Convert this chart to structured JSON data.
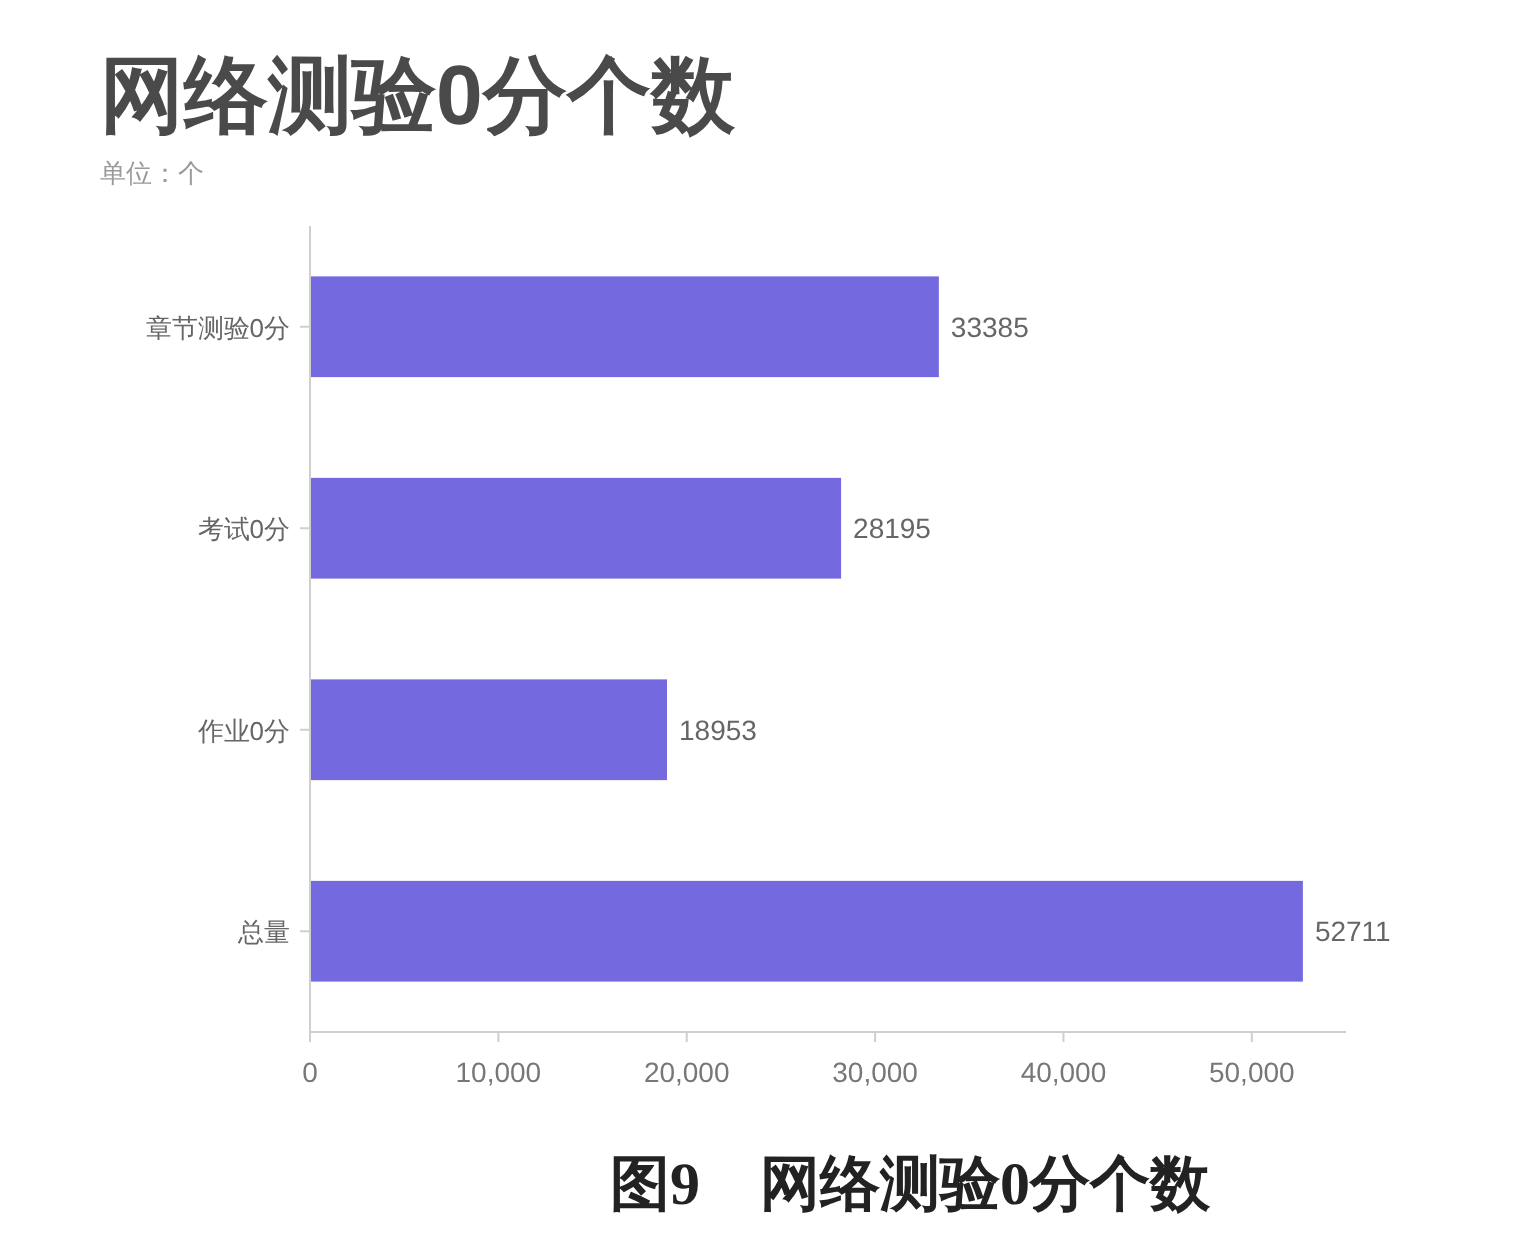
{
  "chart_data": {
    "type": "bar",
    "orientation": "horizontal",
    "title": "网络测验0分个数",
    "subtitle": "单位：个",
    "categories": [
      "章节测验0分",
      "考试0分",
      "作业0分",
      "总量"
    ],
    "values": [
      33385,
      28195,
      18953,
      52711
    ],
    "color": "#7569e0",
    "data_labels": true,
    "xlim": [
      0,
      55000
    ],
    "xticks": [
      0,
      {
        "value": 10000,
        "label": "10,000"
      },
      {
        "value": 20000,
        "label": "20,000"
      },
      {
        "value": 30000,
        "label": "30,000"
      },
      {
        "value": 40000,
        "label": "40,000"
      },
      {
        "value": 50000,
        "label": "50,000"
      }
    ],
    "annotations": [
      "图9　网络测验0分个数"
    ]
  }
}
